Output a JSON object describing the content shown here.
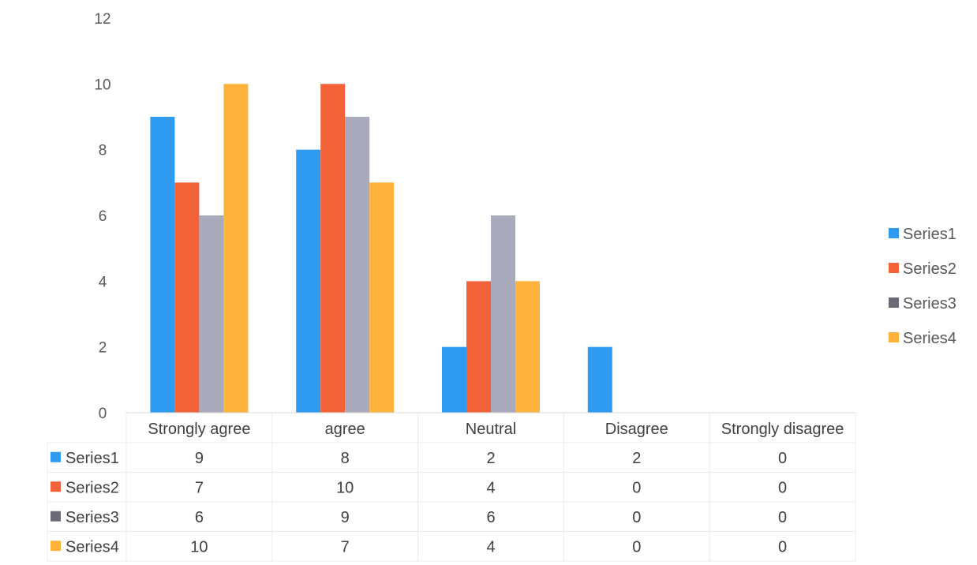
{
  "chart_data": {
    "type": "bar",
    "categories": [
      "Strongly agree",
      "agree",
      "Neutral",
      "Disagree",
      "Strongly disagree"
    ],
    "series": [
      {
        "name": "Series1",
        "values": [
          9,
          8,
          2,
          2,
          0
        ],
        "color": "#2f9bf0"
      },
      {
        "name": "Series2",
        "values": [
          7,
          10,
          4,
          0,
          0
        ],
        "color": "#f4623a"
      },
      {
        "name": "Series3",
        "values": [
          6,
          9,
          6,
          0,
          0
        ],
        "color": "#a9abbd"
      },
      {
        "name": "Series4",
        "values": [
          10,
          7,
          4,
          0,
          0
        ],
        "color": "#fdb33c"
      }
    ],
    "y_ticks": [
      "0",
      "2",
      "4",
      "6",
      "8",
      "10",
      "12"
    ],
    "ylim": [
      0,
      12
    ],
    "grid": false,
    "legend": "right",
    "data_table": true,
    "legend_swatch_colors": [
      "#2f9bf0",
      "#f4623a",
      "#6b6b78",
      "#fdb33c"
    ]
  }
}
